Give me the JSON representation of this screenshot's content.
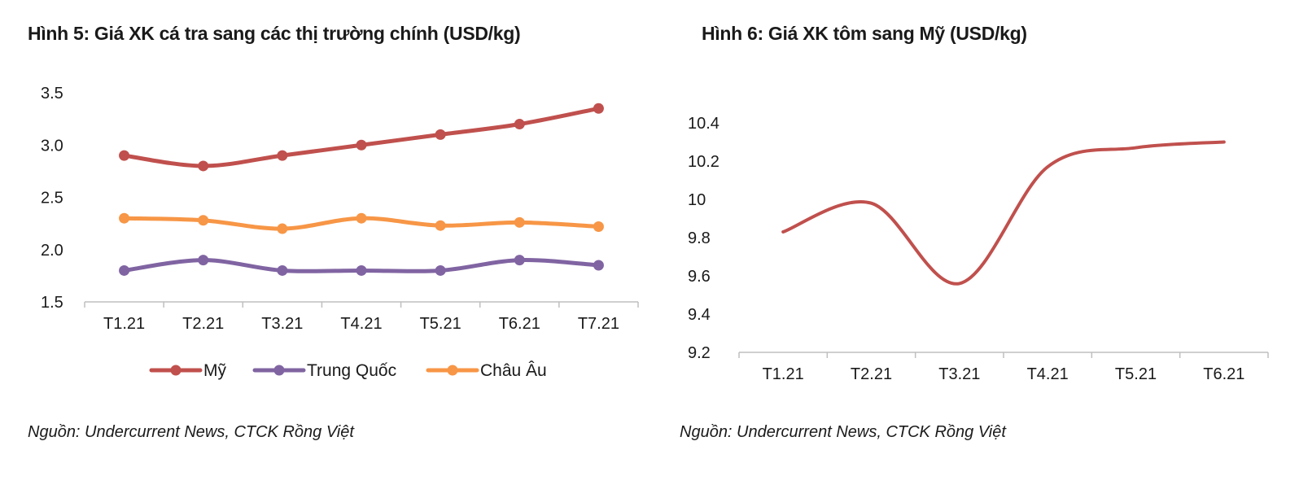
{
  "chart_data": [
    {
      "type": "line",
      "title": "Hình 5: Giá XK cá tra sang các thị trường chính (USD/kg)",
      "source": "Nguồn: Undercurrent News, CTCK Rồng Việt",
      "categories": [
        "T1.21",
        "T2.21",
        "T3.21",
        "T4.21",
        "T5.21",
        "T6.21",
        "T7.21"
      ],
      "yticks": [
        "1.5",
        "2.0",
        "2.5",
        "3.0",
        "3.5"
      ],
      "ylim": [
        1.5,
        3.5
      ],
      "legend_position": "bottom",
      "markers": true,
      "series": [
        {
          "name": "Mỹ",
          "color": "#C0504D",
          "values": [
            2.9,
            2.8,
            2.9,
            3.0,
            3.1,
            3.2,
            3.35
          ]
        },
        {
          "name": "Trung Quốc",
          "color": "#8064A2",
          "values": [
            1.8,
            1.9,
            1.8,
            1.8,
            1.8,
            1.9,
            1.85
          ]
        },
        {
          "name": "Châu Âu",
          "color": "#F79646",
          "values": [
            2.3,
            2.28,
            2.2,
            2.3,
            2.23,
            2.26,
            2.22
          ]
        }
      ]
    },
    {
      "type": "line",
      "title": "Hình 6: Giá XK tôm sang Mỹ (USD/kg)",
      "source": "Nguồn: Undercurrent News, CTCK Rồng Việt",
      "categories": [
        "T1.21",
        "T2.21",
        "T3.21",
        "T4.21",
        "T5.21",
        "T6.21"
      ],
      "yticks": [
        "9.2",
        "9.4",
        "9.6",
        "9.8",
        "10",
        "10.2",
        "10.4"
      ],
      "ylim": [
        9.2,
        10.4
      ],
      "legend_position": "none",
      "markers": false,
      "series": [
        {
          "color": "#C0504D",
          "values": [
            9.83,
            9.98,
            9.56,
            10.17,
            10.27,
            10.3
          ]
        }
      ]
    }
  ]
}
